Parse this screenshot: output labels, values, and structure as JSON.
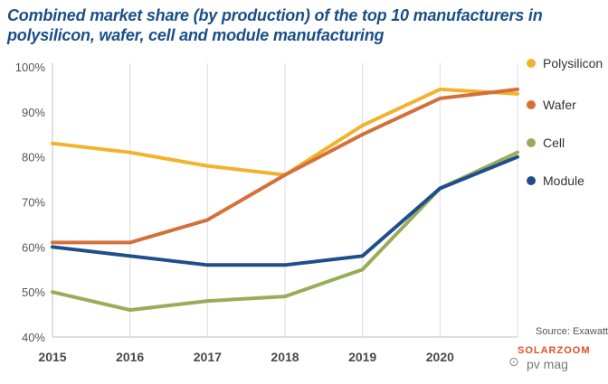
{
  "title_lines": [
    "Combined market share (by production) of the top 10 manufacturers in",
    "polysilicon, wafer, cell and module manufacturing"
  ],
  "source": "Source: Exawatt",
  "watermark": {
    "brand": "SOLARZOOM",
    "sub": "pv mag",
    "icon": "wechat-icon"
  },
  "chart_data": {
    "type": "line",
    "title": "Combined market share (by production) of the top 10 manufacturers in polysilicon, wafer, cell and module manufacturing",
    "xlabel": "",
    "ylabel": "",
    "x": [
      2015,
      2016,
      2017,
      2018,
      2019,
      2020,
      2021
    ],
    "x_tick_labels": [
      "2015",
      "2016",
      "2017",
      "2018",
      "2019",
      "2020",
      ""
    ],
    "ylim": [
      40,
      100
    ],
    "y_ticks": [
      40,
      50,
      60,
      70,
      80,
      90,
      100
    ],
    "y_tick_labels": [
      "40%",
      "50%",
      "60%",
      "70%",
      "80%",
      "90%",
      "100%"
    ],
    "grid": "vertical",
    "legend_position": "right",
    "series": [
      {
        "name": "Polysilicon",
        "color": "#f1b32c",
        "values": [
          83,
          81,
          78,
          76,
          87,
          95,
          94
        ]
      },
      {
        "name": "Wafer",
        "color": "#d4703a",
        "values": [
          61,
          61,
          66,
          76,
          85,
          93,
          95
        ]
      },
      {
        "name": "Cell",
        "color": "#98ad5a",
        "values": [
          50,
          46,
          48,
          49,
          55,
          73,
          81
        ]
      },
      {
        "name": "Module",
        "color": "#1f4e8c",
        "values": [
          60,
          58,
          56,
          56,
          58,
          73,
          80
        ]
      }
    ]
  }
}
